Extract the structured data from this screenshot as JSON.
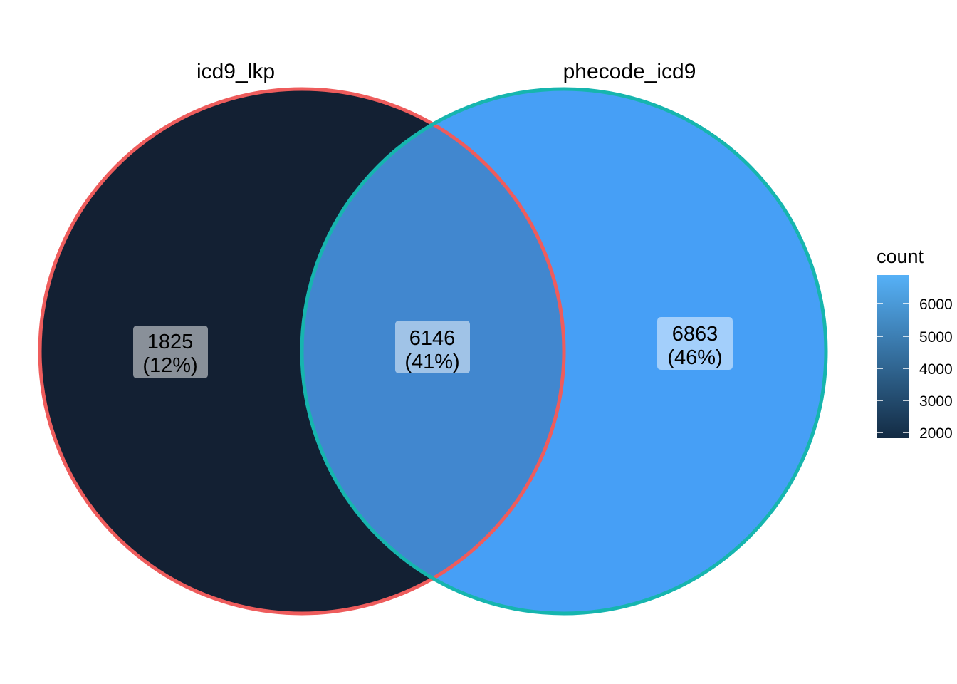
{
  "sets": [
    {
      "name": "icd9_lkp",
      "outline_color": "#EE5C5C"
    },
    {
      "name": "phecode_icd9",
      "outline_color": "#16B5AE"
    }
  ],
  "regions": [
    {
      "id": "icd9_lkp_only",
      "count": "1825",
      "percent": "(12%)",
      "fill": "#132033"
    },
    {
      "id": "intersection",
      "count": "6146",
      "percent": "(41%)",
      "fill": "#4187CF"
    },
    {
      "id": "phecode_icd9_only",
      "count": "6863",
      "percent": "(46%)",
      "fill": "#469FF6"
    }
  ],
  "legend": {
    "title": "count",
    "ticks": [
      "6000",
      "5000",
      "4000",
      "3000",
      "2000"
    ],
    "gradient_low": "#132B43",
    "gradient_high": "#56B1F7"
  }
}
